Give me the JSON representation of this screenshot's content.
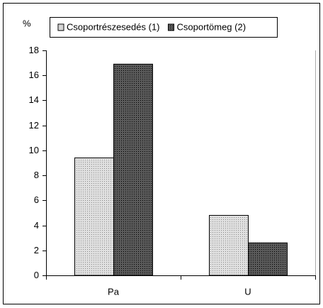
{
  "chart_data": {
    "type": "bar",
    "y_label": "%",
    "categories": [
      "Pa",
      "U"
    ],
    "series": [
      {
        "name": "Csoportrészesedés (1)",
        "color": "#e0e0e0",
        "values": [
          9.4,
          4.8
        ]
      },
      {
        "name": "Csoportömeg (2)",
        "color": "#5a5a5a",
        "values": [
          16.9,
          2.6
        ]
      }
    ],
    "ylim": [
      0,
      18
    ],
    "yticks": [
      0,
      2,
      4,
      6,
      8,
      10,
      12,
      14,
      16,
      18
    ],
    "grid": false
  }
}
